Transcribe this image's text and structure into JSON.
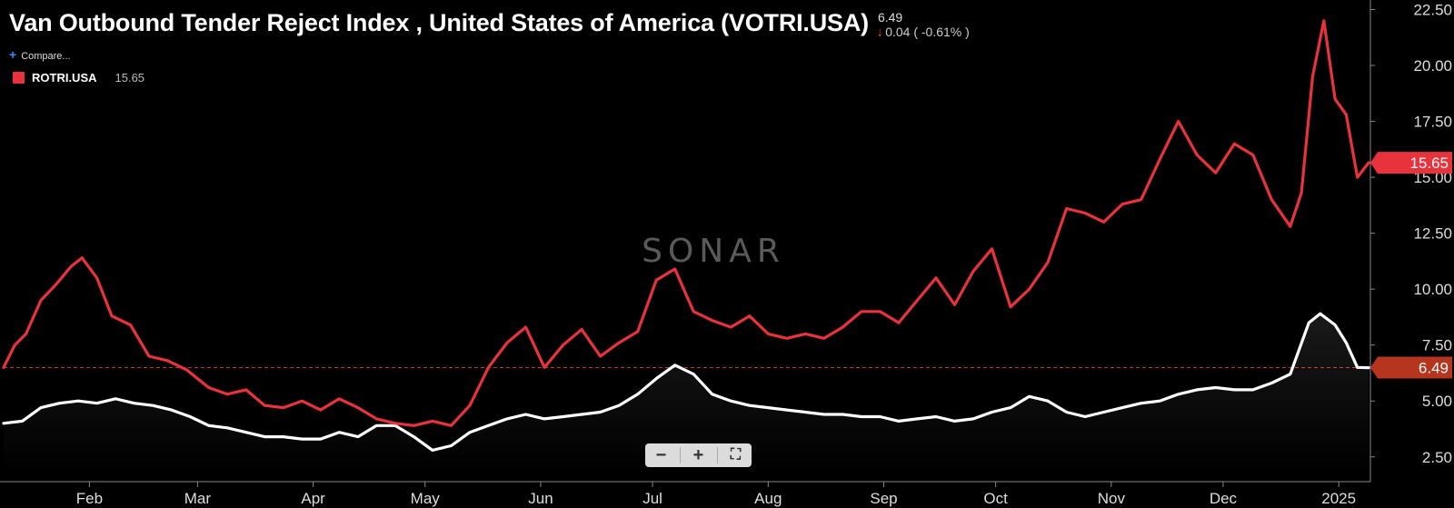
{
  "header": {
    "title": "Van Outbound Tender Reject Index , United States of America (VOTRI.USA)",
    "last_value": "6.49",
    "change_arrow": "down-arrow-icon",
    "change_text": "0.04 ( -0.61% )",
    "compare_label": "Compare..."
  },
  "legend": {
    "series_name": "ROTRI.USA",
    "series_value": "15.65",
    "color": "#e8323c"
  },
  "watermark": "SONAR",
  "controls": {
    "zoom_out": "−",
    "zoom_in": "+",
    "fullscreen": "⛶"
  },
  "colors": {
    "background": "#000000",
    "primary": "#ffffff",
    "compare": "#e8323c",
    "reference_line": "#c0392b"
  },
  "chart_data": {
    "type": "line",
    "x_ticks": [
      "Feb",
      "Mar",
      "Apr",
      "May",
      "Jun",
      "Jul",
      "Aug",
      "Sep",
      "Oct",
      "Nov",
      "Dec",
      "2025"
    ],
    "y_ticks": [
      "2.50",
      "5.00",
      "7.50",
      "10.00",
      "12.50",
      "15.00",
      "17.50",
      "20.00",
      "22.50"
    ],
    "ylim": [
      1.8,
      22.6
    ],
    "xlim": [
      "2024-01-09",
      "2025-01-09"
    ],
    "grid": false,
    "reference_line": 6.49,
    "series": [
      {
        "name": "VOTRI.USA",
        "color": "#ffffff",
        "last_label": "6.49",
        "points": [
          [
            "2024-01-09",
            4.0
          ],
          [
            "2024-01-14",
            4.1
          ],
          [
            "2024-01-19",
            4.7
          ],
          [
            "2024-01-24",
            4.9
          ],
          [
            "2024-01-29",
            5.0
          ],
          [
            "2024-02-03",
            4.9
          ],
          [
            "2024-02-08",
            5.1
          ],
          [
            "2024-02-13",
            4.9
          ],
          [
            "2024-02-18",
            4.8
          ],
          [
            "2024-02-23",
            4.6
          ],
          [
            "2024-02-28",
            4.3
          ],
          [
            "2024-03-04",
            3.9
          ],
          [
            "2024-03-09",
            3.8
          ],
          [
            "2024-03-14",
            3.6
          ],
          [
            "2024-03-19",
            3.4
          ],
          [
            "2024-03-24",
            3.4
          ],
          [
            "2024-03-29",
            3.3
          ],
          [
            "2024-04-03",
            3.3
          ],
          [
            "2024-04-08",
            3.6
          ],
          [
            "2024-04-13",
            3.4
          ],
          [
            "2024-04-18",
            3.9
          ],
          [
            "2024-04-23",
            3.9
          ],
          [
            "2024-04-28",
            3.4
          ],
          [
            "2024-05-03",
            2.8
          ],
          [
            "2024-05-08",
            3.0
          ],
          [
            "2024-05-13",
            3.6
          ],
          [
            "2024-05-18",
            3.9
          ],
          [
            "2024-05-23",
            4.2
          ],
          [
            "2024-05-28",
            4.4
          ],
          [
            "2024-06-02",
            4.2
          ],
          [
            "2024-06-07",
            4.3
          ],
          [
            "2024-06-12",
            4.4
          ],
          [
            "2024-06-17",
            4.5
          ],
          [
            "2024-06-22",
            4.8
          ],
          [
            "2024-06-27",
            5.3
          ],
          [
            "2024-07-02",
            6.0
          ],
          [
            "2024-07-07",
            6.6
          ],
          [
            "2024-07-12",
            6.2
          ],
          [
            "2024-07-17",
            5.3
          ],
          [
            "2024-07-22",
            5.0
          ],
          [
            "2024-07-27",
            4.8
          ],
          [
            "2024-08-01",
            4.7
          ],
          [
            "2024-08-06",
            4.6
          ],
          [
            "2024-08-11",
            4.5
          ],
          [
            "2024-08-16",
            4.4
          ],
          [
            "2024-08-21",
            4.4
          ],
          [
            "2024-08-26",
            4.3
          ],
          [
            "2024-08-31",
            4.3
          ],
          [
            "2024-09-05",
            4.1
          ],
          [
            "2024-09-10",
            4.2
          ],
          [
            "2024-09-15",
            4.3
          ],
          [
            "2024-09-20",
            4.1
          ],
          [
            "2024-09-25",
            4.2
          ],
          [
            "2024-09-30",
            4.5
          ],
          [
            "2024-10-05",
            4.7
          ],
          [
            "2024-10-10",
            5.2
          ],
          [
            "2024-10-15",
            5.0
          ],
          [
            "2024-10-20",
            4.5
          ],
          [
            "2024-10-25",
            4.3
          ],
          [
            "2024-10-30",
            4.5
          ],
          [
            "2024-11-04",
            4.7
          ],
          [
            "2024-11-09",
            4.9
          ],
          [
            "2024-11-14",
            5.0
          ],
          [
            "2024-11-19",
            5.3
          ],
          [
            "2024-11-24",
            5.5
          ],
          [
            "2024-11-29",
            5.6
          ],
          [
            "2024-12-04",
            5.5
          ],
          [
            "2024-12-09",
            5.5
          ],
          [
            "2024-12-14",
            5.8
          ],
          [
            "2024-12-19",
            6.2
          ],
          [
            "2024-12-24",
            8.5
          ],
          [
            "2024-12-27",
            8.9
          ],
          [
            "2024-12-31",
            8.4
          ],
          [
            "2025-01-03",
            7.6
          ],
          [
            "2025-01-06",
            6.5
          ],
          [
            "2025-01-09",
            6.49
          ]
        ]
      },
      {
        "name": "ROTRI.USA",
        "color": "#e8323c",
        "last_label": "15.65",
        "points": [
          [
            "2024-01-09",
            6.5
          ],
          [
            "2024-01-12",
            7.5
          ],
          [
            "2024-01-15",
            8.0
          ],
          [
            "2024-01-19",
            9.5
          ],
          [
            "2024-01-23",
            10.2
          ],
          [
            "2024-01-27",
            11.0
          ],
          [
            "2024-01-30",
            11.4
          ],
          [
            "2024-02-03",
            10.5
          ],
          [
            "2024-02-07",
            8.8
          ],
          [
            "2024-02-12",
            8.4
          ],
          [
            "2024-02-17",
            7.0
          ],
          [
            "2024-02-22",
            6.8
          ],
          [
            "2024-02-27",
            6.4
          ],
          [
            "2024-03-04",
            5.6
          ],
          [
            "2024-03-09",
            5.3
          ],
          [
            "2024-03-14",
            5.5
          ],
          [
            "2024-03-19",
            4.8
          ],
          [
            "2024-03-24",
            4.7
          ],
          [
            "2024-03-29",
            5.0
          ],
          [
            "2024-04-03",
            4.6
          ],
          [
            "2024-04-08",
            5.1
          ],
          [
            "2024-04-13",
            4.7
          ],
          [
            "2024-04-18",
            4.2
          ],
          [
            "2024-04-23",
            4.0
          ],
          [
            "2024-04-28",
            3.9
          ],
          [
            "2024-05-03",
            4.1
          ],
          [
            "2024-05-08",
            3.9
          ],
          [
            "2024-05-13",
            4.8
          ],
          [
            "2024-05-18",
            6.5
          ],
          [
            "2024-05-23",
            7.6
          ],
          [
            "2024-05-28",
            8.3
          ],
          [
            "2024-06-02",
            6.5
          ],
          [
            "2024-06-07",
            7.5
          ],
          [
            "2024-06-12",
            8.2
          ],
          [
            "2024-06-17",
            7.0
          ],
          [
            "2024-06-22",
            7.6
          ],
          [
            "2024-06-27",
            8.1
          ],
          [
            "2024-07-02",
            10.4
          ],
          [
            "2024-07-07",
            10.9
          ],
          [
            "2024-07-12",
            9.0
          ],
          [
            "2024-07-17",
            8.6
          ],
          [
            "2024-07-22",
            8.3
          ],
          [
            "2024-07-27",
            8.8
          ],
          [
            "2024-08-01",
            8.0
          ],
          [
            "2024-08-06",
            7.8
          ],
          [
            "2024-08-11",
            8.0
          ],
          [
            "2024-08-16",
            7.8
          ],
          [
            "2024-08-21",
            8.3
          ],
          [
            "2024-08-26",
            9.0
          ],
          [
            "2024-08-31",
            9.0
          ],
          [
            "2024-09-05",
            8.5
          ],
          [
            "2024-09-10",
            9.5
          ],
          [
            "2024-09-15",
            10.5
          ],
          [
            "2024-09-20",
            9.3
          ],
          [
            "2024-09-25",
            10.8
          ],
          [
            "2024-09-30",
            11.8
          ],
          [
            "2024-10-05",
            9.2
          ],
          [
            "2024-10-10",
            10.0
          ],
          [
            "2024-10-15",
            11.2
          ],
          [
            "2024-10-20",
            13.6
          ],
          [
            "2024-10-25",
            13.4
          ],
          [
            "2024-10-30",
            13.0
          ],
          [
            "2024-11-04",
            13.8
          ],
          [
            "2024-11-09",
            14.0
          ],
          [
            "2024-11-14",
            15.8
          ],
          [
            "2024-11-19",
            17.5
          ],
          [
            "2024-11-24",
            16.0
          ],
          [
            "2024-11-29",
            15.2
          ],
          [
            "2024-12-04",
            16.5
          ],
          [
            "2024-12-09",
            16.0
          ],
          [
            "2024-12-14",
            14.0
          ],
          [
            "2024-12-19",
            12.8
          ],
          [
            "2024-12-22",
            14.3
          ],
          [
            "2024-12-25",
            19.5
          ],
          [
            "2024-12-28",
            22.0
          ],
          [
            "2024-12-31",
            18.5
          ],
          [
            "2025-01-03",
            17.8
          ],
          [
            "2025-01-06",
            15.0
          ],
          [
            "2025-01-09",
            15.65
          ]
        ]
      }
    ]
  }
}
